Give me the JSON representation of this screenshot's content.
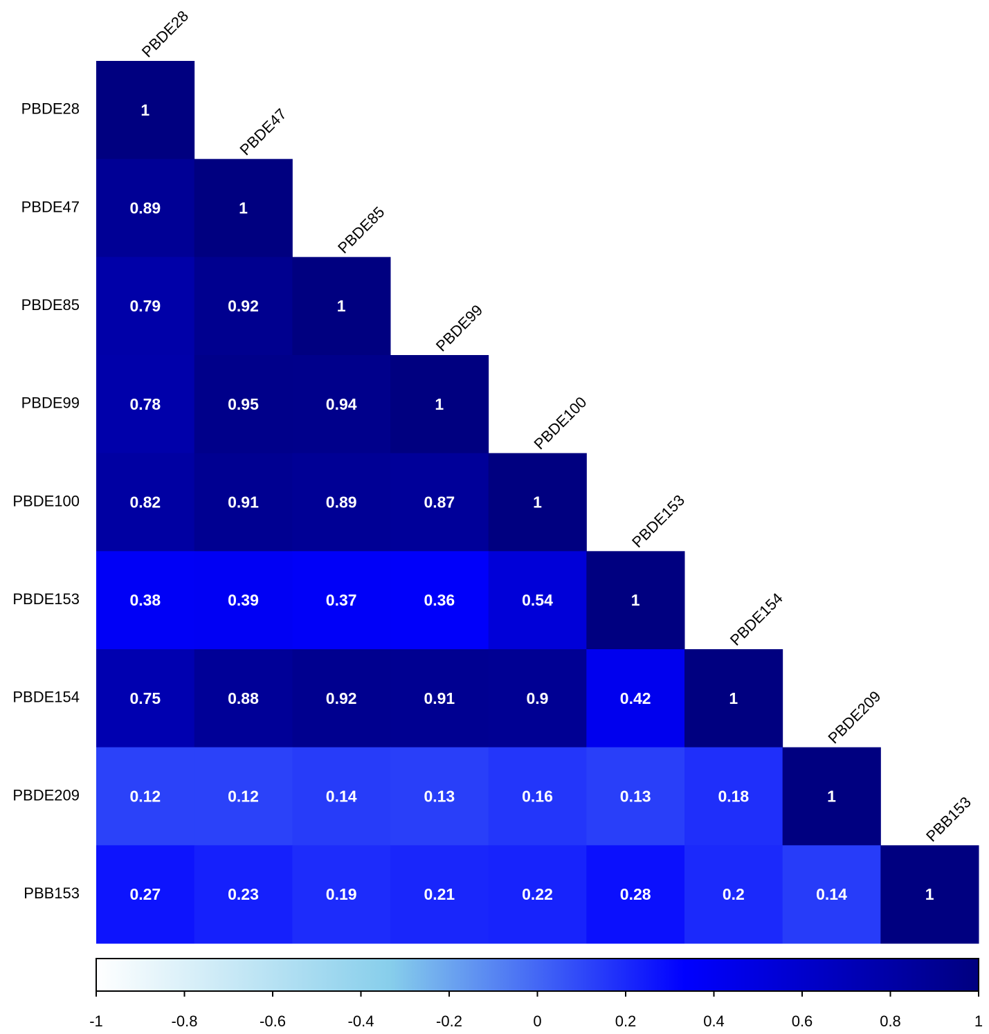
{
  "chart_data": {
    "type": "heatmap",
    "categories": [
      "PBDE28",
      "PBDE47",
      "PBDE85",
      "PBDE99",
      "PBDE100",
      "PBDE153",
      "PBDE154",
      "PBDE209",
      "PBB153"
    ],
    "values": [
      [
        1,
        null,
        null,
        null,
        null,
        null,
        null,
        null,
        null
      ],
      [
        0.89,
        1,
        null,
        null,
        null,
        null,
        null,
        null,
        null
      ],
      [
        0.79,
        0.92,
        1,
        null,
        null,
        null,
        null,
        null,
        null
      ],
      [
        0.78,
        0.95,
        0.94,
        1,
        null,
        null,
        null,
        null,
        null
      ],
      [
        0.82,
        0.91,
        0.89,
        0.87,
        1,
        null,
        null,
        null,
        null
      ],
      [
        0.38,
        0.39,
        0.37,
        0.36,
        0.54,
        1,
        null,
        null,
        null
      ],
      [
        0.75,
        0.88,
        0.92,
        0.91,
        0.9,
        0.42,
        1,
        null,
        null
      ],
      [
        0.12,
        0.12,
        0.14,
        0.13,
        0.16,
        0.13,
        0.18,
        1,
        null
      ],
      [
        0.27,
        0.23,
        0.19,
        0.21,
        0.22,
        0.28,
        0.2,
        0.14,
        1
      ]
    ],
    "colors": [
      "#ffffff",
      "#87ceeb",
      "#0000ff",
      "#000080"
    ],
    "clim": [
      -1,
      1
    ],
    "cticks": [
      -1,
      -0.8,
      -0.6,
      -0.4,
      -0.2,
      0,
      0.2,
      0.4,
      0.6,
      0.8,
      1
    ]
  }
}
